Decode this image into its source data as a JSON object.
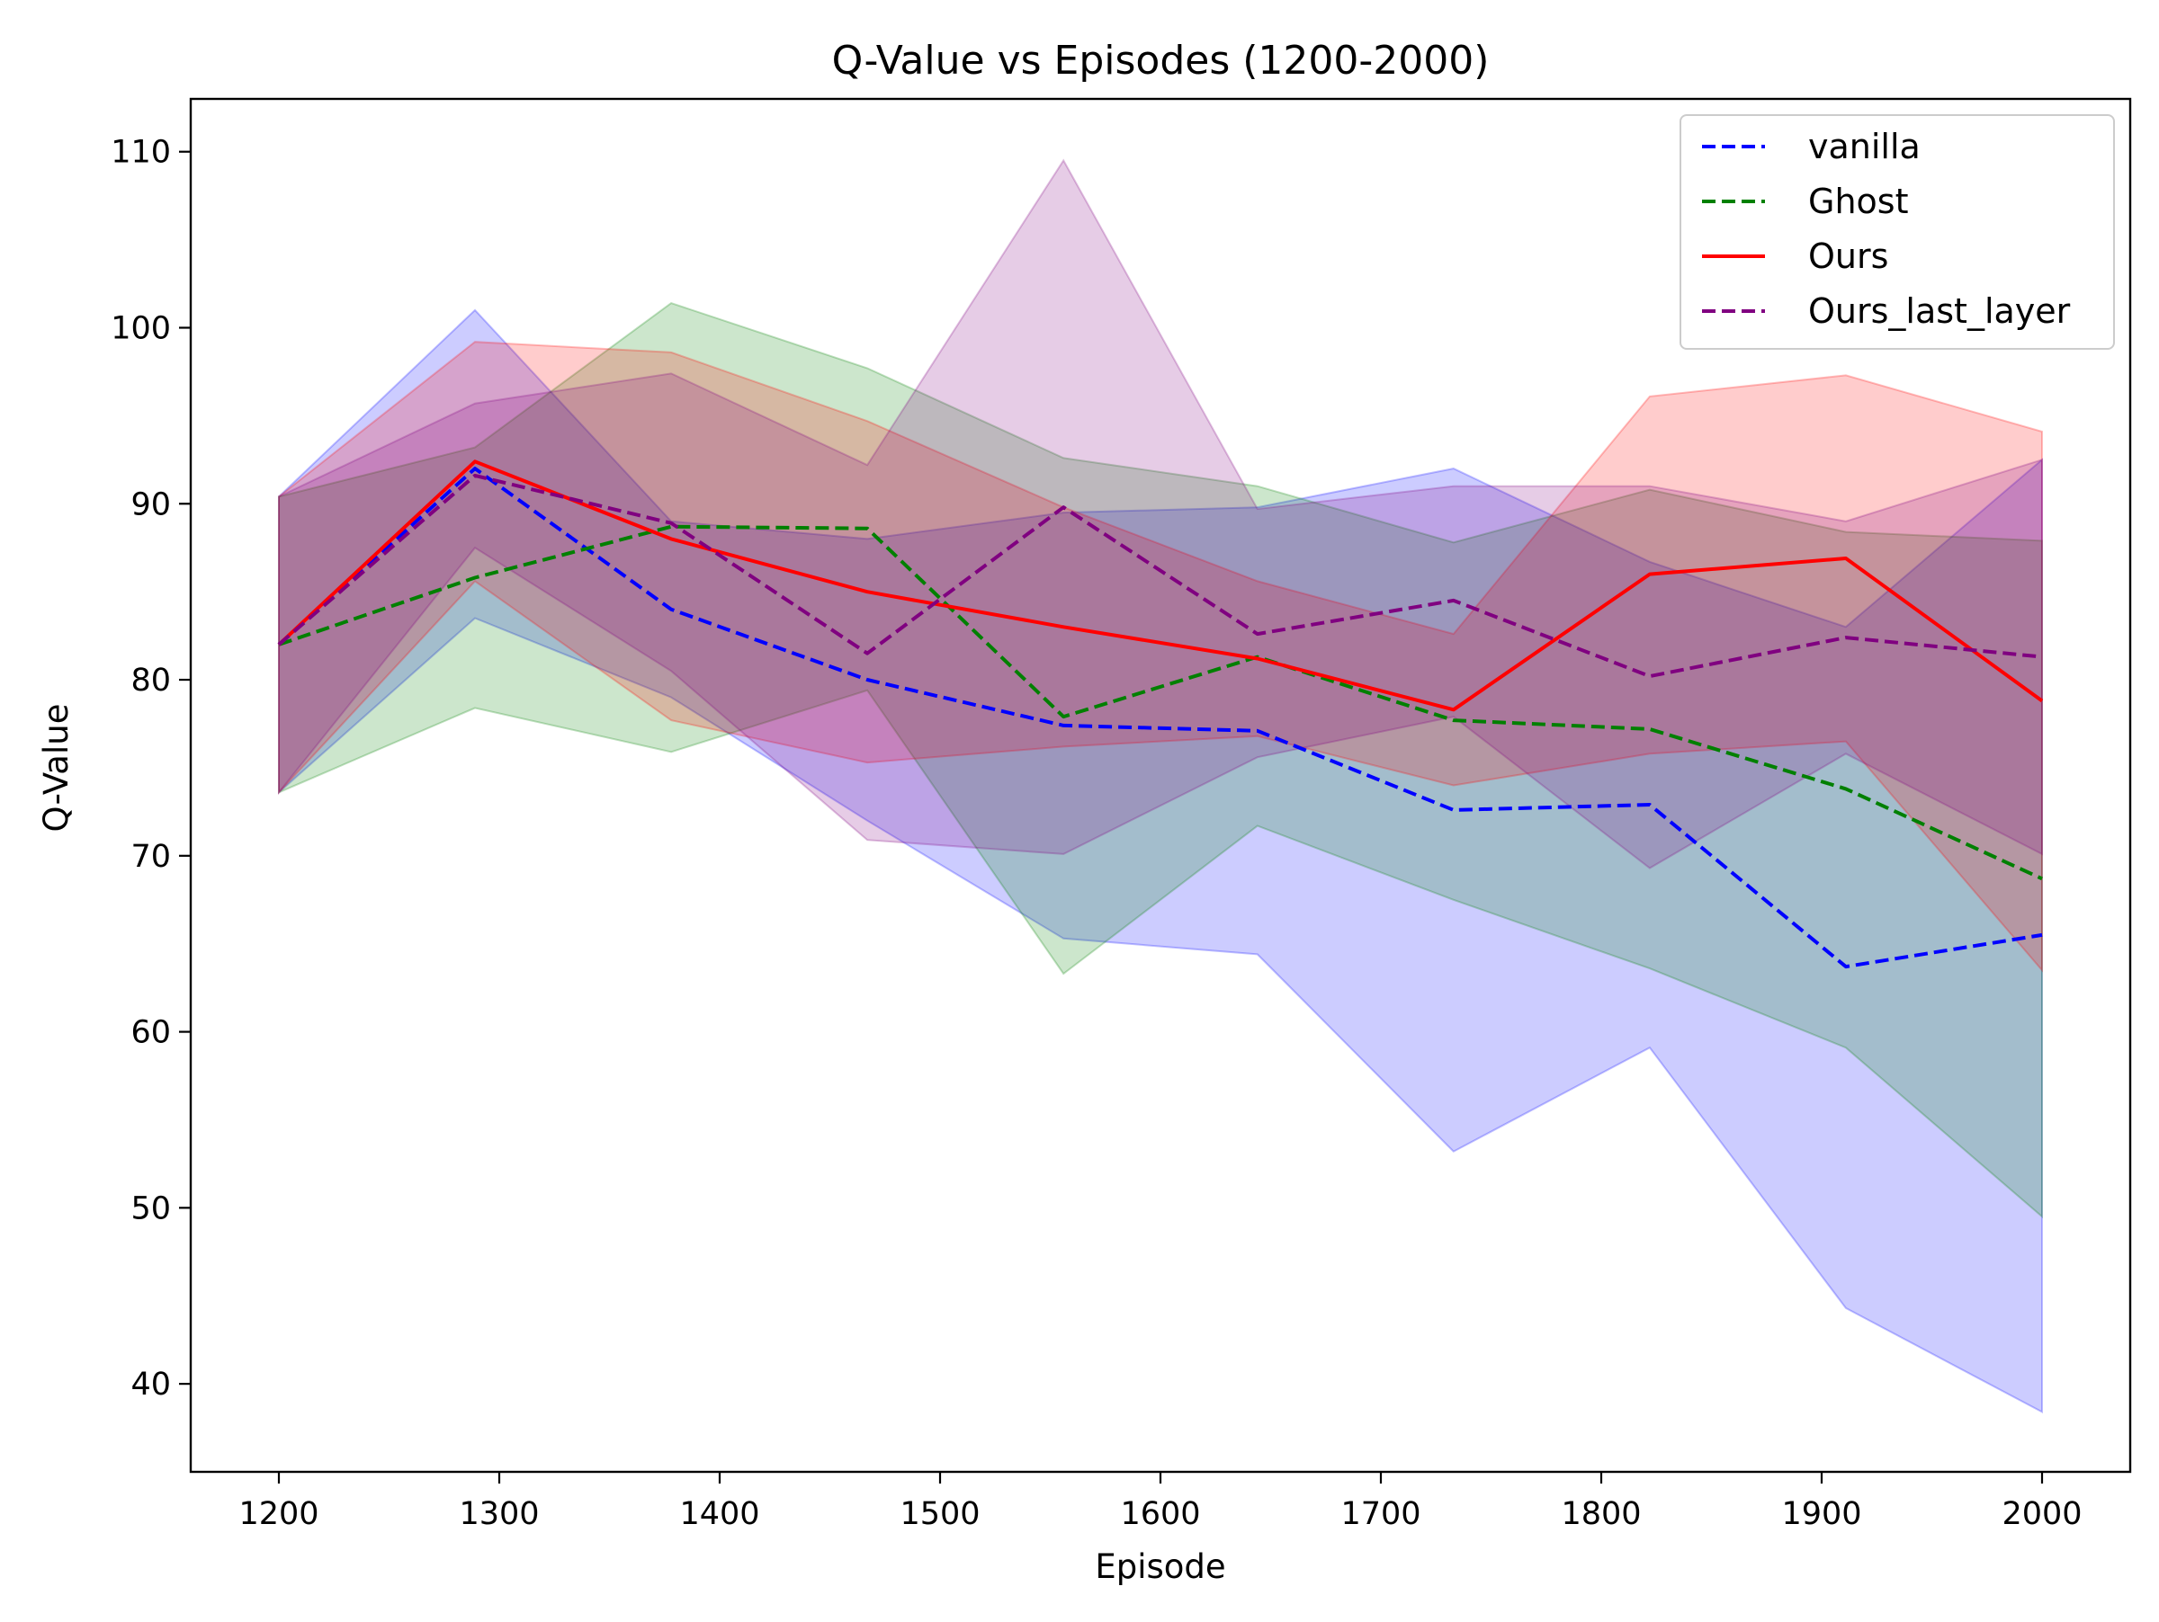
{
  "chart_data": {
    "type": "line",
    "title": "Q-Value vs Episodes (1200-2000)",
    "xlabel": "Episode",
    "ylabel": "Q-Value",
    "xlim": [
      1160,
      2040
    ],
    "ylim": [
      35,
      113
    ],
    "xticks": [
      1200,
      1300,
      1400,
      1500,
      1600,
      1700,
      1800,
      1900,
      2000
    ],
    "yticks": [
      40,
      50,
      60,
      70,
      80,
      90,
      100,
      110
    ],
    "grid": false,
    "legend_position": "top-right",
    "x": [
      1200,
      1289,
      1378,
      1467,
      1556,
      1644,
      1733,
      1822,
      1911,
      2000
    ],
    "series": [
      {
        "name": "vanilla",
        "color": "#0000ff",
        "dash": "dashed",
        "mean": [
          82.0,
          92.0,
          84.0,
          80.0,
          77.4,
          77.1,
          72.6,
          72.9,
          63.7,
          65.5
        ],
        "upper": [
          90.4,
          101.0,
          89.0,
          88.0,
          89.5,
          89.8,
          92.0,
          86.7,
          83.0,
          92.5
        ],
        "lower": [
          73.6,
          83.5,
          79.0,
          72.0,
          65.3,
          64.4,
          53.2,
          59.1,
          44.3,
          38.4
        ]
      },
      {
        "name": "Ghost",
        "color": "#008000",
        "dash": "dashed",
        "mean": [
          82.0,
          85.8,
          88.7,
          88.6,
          77.9,
          81.3,
          77.7,
          77.2,
          73.8,
          68.7
        ],
        "upper": [
          90.4,
          93.2,
          101.4,
          97.7,
          92.6,
          91.0,
          87.8,
          90.8,
          88.4,
          87.9
        ],
        "lower": [
          73.6,
          78.4,
          75.9,
          79.4,
          63.3,
          71.7,
          67.5,
          63.6,
          59.1,
          49.5
        ]
      },
      {
        "name": "Ours",
        "color": "#ff0000",
        "dash": "solid",
        "mean": [
          82.0,
          92.4,
          88.0,
          85.0,
          83.0,
          81.2,
          78.3,
          86.0,
          86.9,
          78.8
        ],
        "upper": [
          90.4,
          99.2,
          98.6,
          94.7,
          89.8,
          85.6,
          82.6,
          96.1,
          97.3,
          94.1
        ],
        "lower": [
          73.6,
          85.6,
          77.7,
          75.3,
          76.2,
          76.8,
          74.0,
          75.8,
          76.5,
          63.5
        ]
      },
      {
        "name": "Ours_last_layer",
        "color": "#800080",
        "dash": "dashed",
        "mean": [
          82.0,
          91.6,
          88.9,
          81.5,
          89.8,
          82.6,
          84.5,
          80.2,
          82.4,
          81.3
        ],
        "upper": [
          90.4,
          95.7,
          97.4,
          92.2,
          109.5,
          89.7,
          91.0,
          91.0,
          89.0,
          92.5
        ],
        "lower": [
          73.6,
          87.5,
          80.5,
          70.9,
          70.1,
          75.6,
          77.9,
          69.3,
          75.8,
          70.1
        ]
      }
    ]
  }
}
